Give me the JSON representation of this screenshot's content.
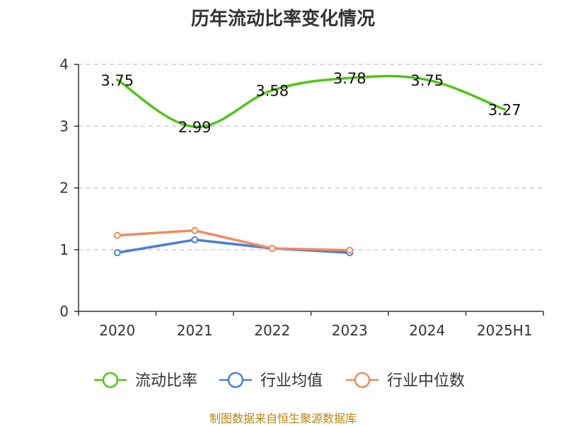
{
  "chart_data": {
    "type": "line",
    "title": "历年流动比率变化情况",
    "categories": [
      "2020",
      "2021",
      "2022",
      "2023",
      "2024",
      "2025H1"
    ],
    "ylim": [
      0,
      4
    ],
    "yticks": [
      0,
      1,
      2,
      3,
      4
    ],
    "grid": "horizontal-dashed",
    "legend_position": "bottom",
    "series": [
      {
        "name": "流动比率",
        "color": "#52c41a",
        "values": [
          3.75,
          2.99,
          3.58,
          3.78,
          3.75,
          3.27
        ],
        "labels": [
          "3.75",
          "2.99",
          "3.58",
          "3.78",
          "3.75",
          "3.27"
        ]
      },
      {
        "name": "行业均值",
        "color": "#4a7fd8",
        "values": [
          0.95,
          1.16,
          1.02,
          0.95,
          null,
          null
        ]
      },
      {
        "name": "行业中位数",
        "color": "#f08c5a",
        "values": [
          1.23,
          1.31,
          1.02,
          0.99,
          null,
          null
        ]
      }
    ]
  },
  "footer": {
    "source": "制图数据来自恒生聚源数据库"
  }
}
